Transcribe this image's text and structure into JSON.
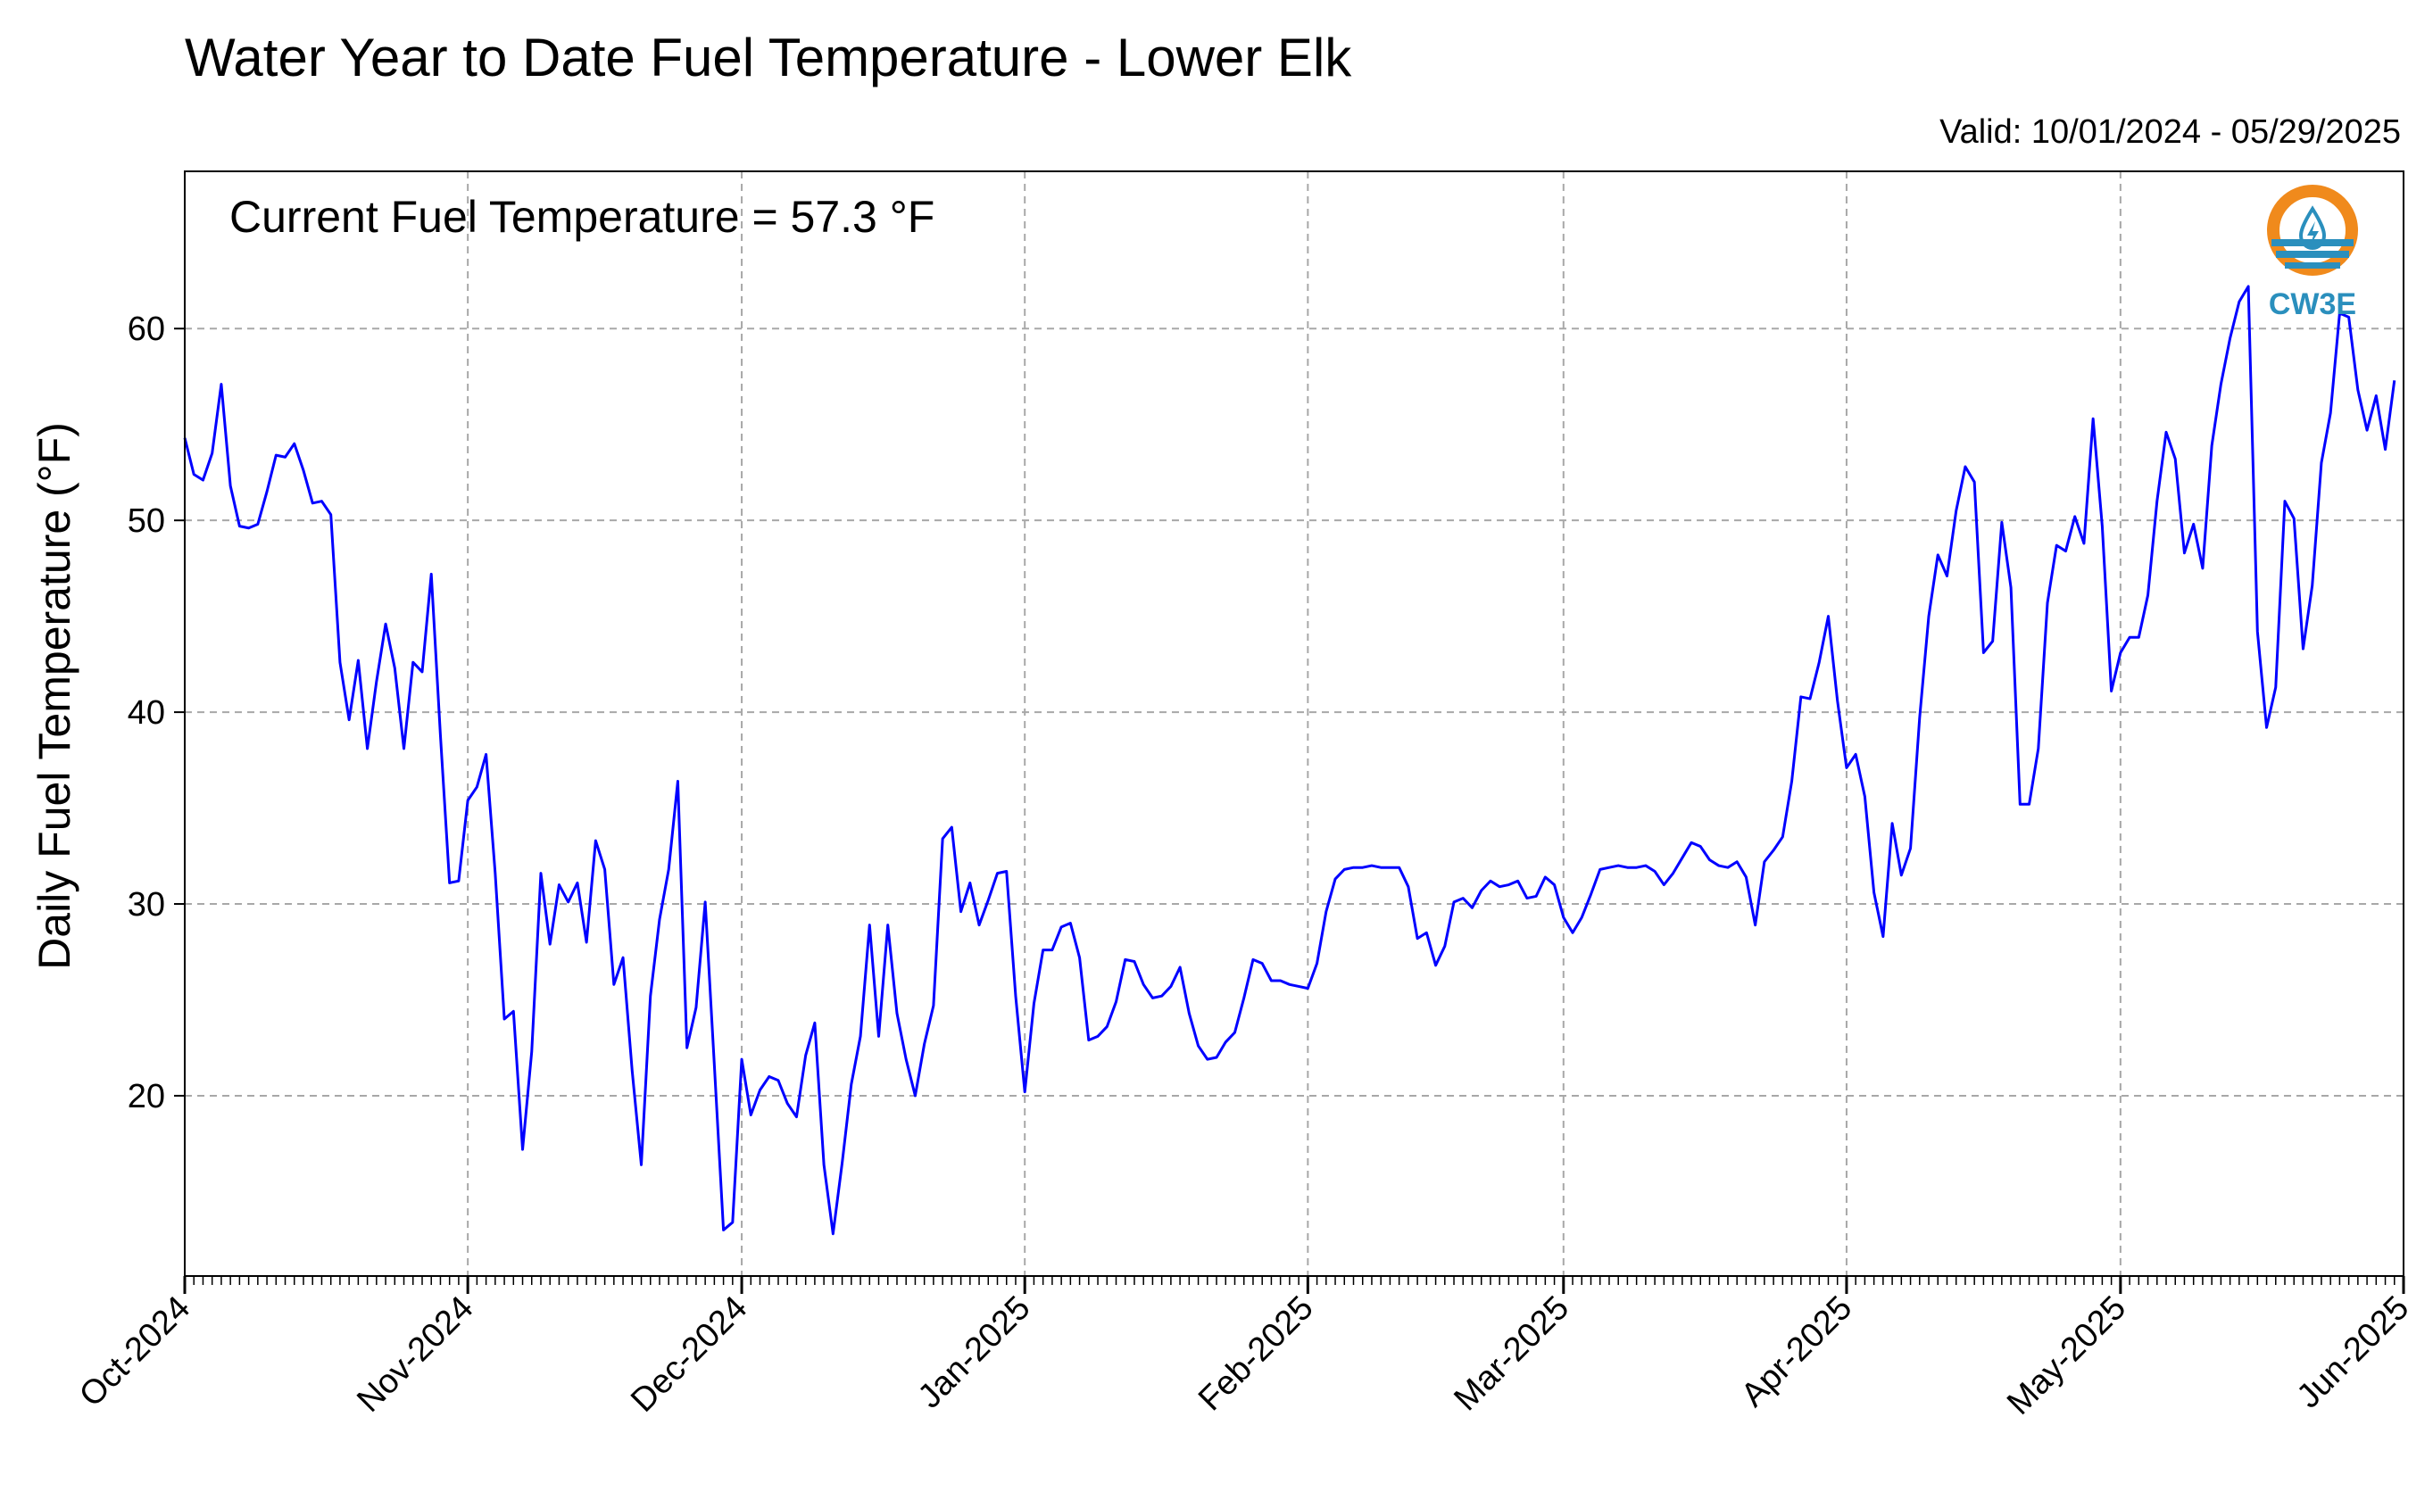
{
  "chart_data": {
    "type": "line",
    "title": "Water Year to Date Fuel Temperature - Lower Elk",
    "valid_label": "Valid: 10/01/2024 - 05/29/2025",
    "annotation": "Current Fuel Temperature = 57.3 °F",
    "ylabel": "Daily Fuel Temperature (°F)",
    "xlabel": "",
    "ylim": [
      10.6,
      68.2
    ],
    "yticks": [
      20,
      30,
      40,
      50,
      60
    ],
    "xlim": [
      "2024-10-01",
      "2025-06-01"
    ],
    "xticks": [
      {
        "date": "2024-10-01",
        "label": "Oct-2024"
      },
      {
        "date": "2024-11-01",
        "label": "Nov-2024"
      },
      {
        "date": "2024-12-01",
        "label": "Dec-2024"
      },
      {
        "date": "2025-01-01",
        "label": "Jan-2025"
      },
      {
        "date": "2025-02-01",
        "label": "Feb-2025"
      },
      {
        "date": "2025-03-01",
        "label": "Mar-2025"
      },
      {
        "date": "2025-04-01",
        "label": "Apr-2025"
      },
      {
        "date": "2025-05-01",
        "label": "May-2025"
      },
      {
        "date": "2025-06-01",
        "label": "Jun-2025"
      }
    ],
    "grid": true,
    "line_color": "#0000ff",
    "series": [
      {
        "values": [
          54.3,
          52.4,
          52.1,
          53.5,
          57.1,
          51.8,
          49.7,
          49.6,
          49.8,
          51.5,
          53.4,
          53.3,
          54.0,
          52.6,
          50.9,
          51.0,
          50.3,
          42.6,
          39.6,
          42.7,
          38.1,
          41.6,
          44.6,
          42.3,
          38.1,
          42.6,
          42.1,
          47.2,
          38.8,
          31.1,
          31.2,
          35.4,
          36.1,
          37.8,
          31.6,
          24.0,
          24.4,
          17.2,
          22.3,
          31.6,
          27.9,
          31.0,
          30.1,
          31.1,
          28.0,
          33.3,
          31.8,
          25.8,
          27.2,
          21.3,
          16.4,
          25.2,
          29.2,
          31.8,
          36.4,
          22.5,
          24.6,
          30.1,
          21.6,
          13.0,
          13.4,
          21.9,
          19.0,
          20.3,
          21.0,
          20.8,
          19.6,
          18.9,
          22.1,
          23.8,
          16.4,
          12.8,
          16.5,
          20.6,
          23.1,
          28.9,
          23.1,
          28.9,
          24.3,
          21.9,
          20.0,
          22.7,
          24.7,
          33.4,
          34.0,
          29.6,
          31.1,
          28.9,
          30.2,
          31.6,
          31.7,
          25.2,
          20.2,
          24.8,
          27.6,
          27.6,
          28.8,
          29.0,
          27.2,
          22.9,
          23.1,
          23.6,
          24.9,
          27.1,
          27.0,
          25.8,
          25.1,
          25.2,
          25.7,
          26.7,
          24.3,
          22.6,
          21.9,
          22.0,
          22.8,
          23.3,
          25.1,
          27.1,
          26.9,
          26.0,
          26.0,
          25.8,
          25.7,
          25.6,
          26.9,
          29.6,
          31.3,
          31.8,
          31.9,
          31.9,
          32.0,
          31.9,
          31.9,
          31.9,
          30.9,
          28.2,
          28.5,
          26.8,
          27.8,
          30.1,
          30.3,
          29.8,
          30.7,
          31.2,
          30.9,
          31.0,
          31.2,
          30.3,
          30.4,
          31.4,
          31.0,
          29.3,
          28.5,
          29.3,
          30.5,
          31.8,
          31.9,
          32.0,
          31.9,
          31.9,
          32.0,
          31.7,
          31.0,
          31.6,
          32.4,
          33.2,
          33.0,
          32.3,
          32.0,
          31.9,
          32.2,
          31.4,
          28.9,
          32.2,
          32.8,
          33.5,
          36.4,
          40.8,
          40.7,
          42.6,
          45.0,
          40.6,
          37.1,
          37.8,
          35.6,
          30.6,
          28.3,
          34.2,
          31.5,
          32.9,
          39.7,
          45.0,
          48.2,
          47.1,
          50.5,
          52.8,
          52.0,
          43.1,
          43.7,
          49.9,
          46.5,
          35.2,
          35.2,
          38.1,
          45.7,
          48.7,
          48.4,
          50.2,
          48.8,
          55.3,
          49.7,
          41.1,
          43.1,
          43.9,
          43.9,
          46.1,
          51.0,
          54.6,
          53.2,
          48.3,
          49.8,
          47.5,
          53.9,
          57.1,
          59.5,
          61.4,
          62.2,
          44.2,
          39.2,
          41.3,
          51.0,
          50.1,
          43.3,
          46.6,
          53.0,
          55.6,
          60.8,
          60.6,
          56.8,
          54.7,
          56.5,
          53.7,
          57.3
        ]
      }
    ]
  },
  "logo": {
    "text": "CW3E",
    "ring_color": "#f08a1c",
    "wave_color": "#2a8fbd",
    "text_color": "#2a8fbd"
  }
}
